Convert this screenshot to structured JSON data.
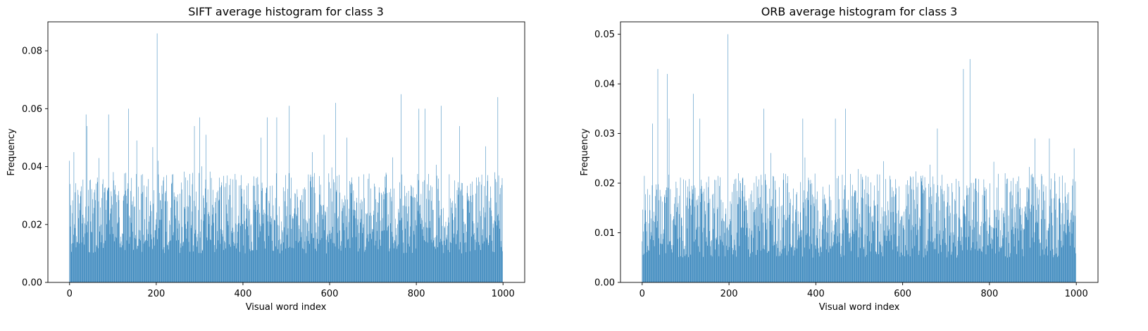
{
  "chart_data": [
    {
      "type": "bar",
      "title": "SIFT average histogram for class 3",
      "xlabel": "Visual word index",
      "ylabel": "Frequency",
      "xlim": [
        -50,
        1050
      ],
      "ylim": [
        0,
        0.09
      ],
      "xticks": [
        0,
        200,
        400,
        600,
        800,
        1000
      ],
      "xtick_labels": [
        "0",
        "200",
        "400",
        "600",
        "800",
        "1000"
      ],
      "yticks": [
        0.0,
        0.02,
        0.04,
        0.06,
        0.08
      ],
      "ytick_labels": [
        "0.00",
        "0.02",
        "0.04",
        "0.06",
        "0.08"
      ],
      "color": "#1f77b4",
      "n_bins": 1000,
      "bar_width": 0.8,
      "values_summary": "1000 bars, one per visual word index 0–999; most values lie between about 0.01 and 0.045",
      "peaks": [
        {
          "x": 0,
          "value": 0.042
        },
        {
          "x": 10,
          "value": 0.045
        },
        {
          "x": 38,
          "value": 0.058
        },
        {
          "x": 40,
          "value": 0.054
        },
        {
          "x": 90,
          "value": 0.058
        },
        {
          "x": 136,
          "value": 0.06
        },
        {
          "x": 155,
          "value": 0.049
        },
        {
          "x": 202,
          "value": 0.086
        },
        {
          "x": 288,
          "value": 0.054
        },
        {
          "x": 300,
          "value": 0.057
        },
        {
          "x": 315,
          "value": 0.051
        },
        {
          "x": 442,
          "value": 0.05
        },
        {
          "x": 456,
          "value": 0.057
        },
        {
          "x": 478,
          "value": 0.057
        },
        {
          "x": 507,
          "value": 0.061
        },
        {
          "x": 560,
          "value": 0.045
        },
        {
          "x": 587,
          "value": 0.051
        },
        {
          "x": 614,
          "value": 0.062
        },
        {
          "x": 640,
          "value": 0.05
        },
        {
          "x": 765,
          "value": 0.065
        },
        {
          "x": 806,
          "value": 0.06
        },
        {
          "x": 820,
          "value": 0.06
        },
        {
          "x": 857,
          "value": 0.061
        },
        {
          "x": 900,
          "value": 0.054
        },
        {
          "x": 960,
          "value": 0.047
        },
        {
          "x": 988,
          "value": 0.064
        }
      ]
    },
    {
      "type": "bar",
      "title": "ORB average histogram for class 3",
      "xlabel": "Visual word index",
      "ylabel": "Frequency",
      "xlim": [
        -50,
        1050
      ],
      "ylim": [
        0,
        0.0525
      ],
      "xticks": [
        0,
        200,
        400,
        600,
        800,
        1000
      ],
      "xtick_labels": [
        "0",
        "200",
        "400",
        "600",
        "800",
        "1000"
      ],
      "yticks": [
        0.0,
        0.01,
        0.02,
        0.03,
        0.04,
        0.05
      ],
      "ytick_labels": [
        "0.00",
        "0.01",
        "0.02",
        "0.03",
        "0.04",
        "0.05"
      ],
      "color": "#1f77b4",
      "n_bins": 1000,
      "bar_width": 0.8,
      "values_summary": "1000 bars, one per visual word index 0–999; most values lie between about 0.005 and 0.025",
      "peaks": [
        {
          "x": 24,
          "value": 0.032
        },
        {
          "x": 36,
          "value": 0.043
        },
        {
          "x": 58,
          "value": 0.042
        },
        {
          "x": 62,
          "value": 0.033
        },
        {
          "x": 118,
          "value": 0.038
        },
        {
          "x": 133,
          "value": 0.033
        },
        {
          "x": 197,
          "value": 0.05
        },
        {
          "x": 280,
          "value": 0.035
        },
        {
          "x": 370,
          "value": 0.033
        },
        {
          "x": 445,
          "value": 0.033
        },
        {
          "x": 468,
          "value": 0.035
        },
        {
          "x": 680,
          "value": 0.031
        },
        {
          "x": 740,
          "value": 0.043
        },
        {
          "x": 755,
          "value": 0.045
        },
        {
          "x": 905,
          "value": 0.029
        },
        {
          "x": 938,
          "value": 0.029
        },
        {
          "x": 995,
          "value": 0.027
        }
      ]
    }
  ]
}
